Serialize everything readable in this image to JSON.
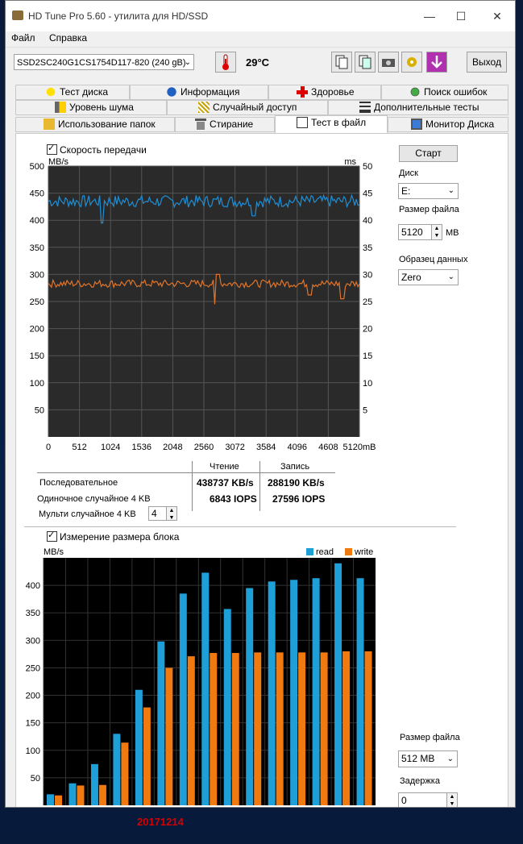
{
  "window": {
    "title": "HD Tune Pro 5.60 - утилита для HD/SSD"
  },
  "menu": [
    "Файл",
    "Справка"
  ],
  "toolbar": {
    "drive": "SSD2SC240G1CS1754D117-820 (240 gB)",
    "temperature": "29°C",
    "exit_label": "Выход"
  },
  "tabs": {
    "row1": [
      "Тест диска",
      "Информация",
      "Здоровье",
      "Поиск ошибок"
    ],
    "row2": [
      "Уровень шума",
      "Случайный доступ",
      "Дополнительные  тесты"
    ],
    "row3": [
      "Использование папок",
      "Стирание",
      "Тест в файл",
      "Монитор Диска"
    ],
    "active": "Тест в файл"
  },
  "transfer": {
    "checkbox_label": "Скорость передачи",
    "chart": {
      "type": "line",
      "left_unit": "MB/s",
      "right_unit": "ms",
      "y_ticks": [
        50,
        100,
        150,
        200,
        250,
        300,
        350,
        400,
        450,
        500
      ],
      "y2_ticks": [
        5,
        10,
        15,
        20,
        25,
        30,
        35,
        40,
        45,
        50
      ],
      "x_ticks": [
        "0",
        "512",
        "1024",
        "1536",
        "2048",
        "2560",
        "3072",
        "3584",
        "4096",
        "4608",
        "5120mB"
      ],
      "ylim": [
        0,
        500
      ],
      "xlim": [
        0,
        5120
      ],
      "read_level": 435,
      "write_level": 283,
      "read_color": "#1e8fd6",
      "write_color": "#e0742a"
    }
  },
  "results": {
    "col_read": "Чтение",
    "col_write": "Запись",
    "rows": [
      {
        "label": "Последовательное",
        "read": "438737 KB/s",
        "write": "288190 KB/s"
      },
      {
        "label": "Одиночное случайное 4 KB",
        "read": "6843 IOPS",
        "write": "27596 IOPS"
      },
      {
        "label": "Мульти случайное 4 KB",
        "spin": "4",
        "read": "",
        "write": ""
      }
    ]
  },
  "right_panel": {
    "start_label": "Старт",
    "disk_label": "Диск",
    "disk_value": "E:",
    "filesize_label": "Размер файла",
    "filesize_value": "5120",
    "filesize_unit": "MB",
    "pattern_label": "Образец данных",
    "pattern_value": "Zero"
  },
  "block": {
    "checkbox_label": "Измерение размера блока",
    "filesize_label": "Размер файла",
    "filesize_value": "512 MB",
    "delay_label": "Задержка",
    "delay_value": "0"
  },
  "chart_data": {
    "type": "bar",
    "ylabel": "MB/s",
    "ylim": [
      0,
      450
    ],
    "y_ticks": [
      50,
      100,
      150,
      200,
      250,
      300,
      350,
      400
    ],
    "series": [
      {
        "name": "read",
        "color": "#1e9fd8",
        "values": [
          20,
          40,
          75,
          130,
          210,
          298,
          385,
          423,
          357,
          395,
          407,
          410,
          413,
          440,
          413
        ]
      },
      {
        "name": "write",
        "color": "#f07a10",
        "values": [
          18,
          36,
          37,
          114,
          178,
          250,
          271,
          277,
          277,
          278,
          278,
          278,
          278,
          280,
          280
        ]
      }
    ]
  },
  "footer": {
    "date": "20171214"
  }
}
